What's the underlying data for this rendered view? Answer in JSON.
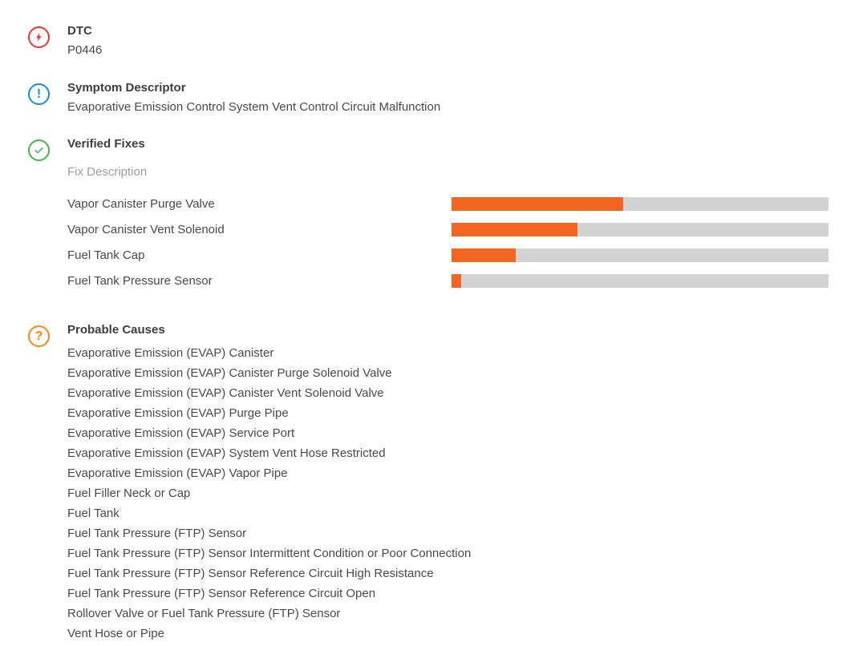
{
  "colors": {
    "bar_fill": "#f26522",
    "bar_track": "#d3d3d3",
    "dtc_icon": "#e53935",
    "symptom_icon": "#1e88e5",
    "fixes_icon": "#4caf50",
    "causes_icon": "#f5861f",
    "heading_text": "#3e3e3e",
    "body_text": "#4a4a4a",
    "muted_text": "#9e9e9e"
  },
  "dtc": {
    "heading": "DTC",
    "code": "P0446"
  },
  "symptom": {
    "heading": "Symptom Descriptor",
    "description": "Evaporative Emission Control System Vent Control Circuit Malfunction"
  },
  "verified_fixes": {
    "heading": "Verified Fixes",
    "column_header": "Fix Description",
    "fixes": [
      {
        "name": "Vapor Canister Purge Valve",
        "percent": 45.5
      },
      {
        "name": "Vapor Canister Vent Solenoid",
        "percent": 33.5
      },
      {
        "name": "Fuel Tank Cap",
        "percent": 17
      },
      {
        "name": "Fuel Tank Pressure Sensor",
        "percent": 2.5
      }
    ]
  },
  "probable_causes": {
    "heading": "Probable Causes",
    "items": [
      "Evaporative Emission (EVAP) Canister",
      "Evaporative Emission (EVAP) Canister Purge Solenoid Valve",
      "Evaporative Emission (EVAP) Canister Vent Solenoid Valve",
      "Evaporative Emission (EVAP) Purge Pipe",
      "Evaporative Emission (EVAP) Service Port",
      "Evaporative Emission (EVAP) System Vent Hose Restricted",
      "Evaporative Emission (EVAP) Vapor Pipe",
      "Fuel Filler Neck or Cap",
      "Fuel Tank",
      "Fuel Tank Pressure (FTP) Sensor",
      "Fuel Tank Pressure (FTP) Sensor Intermittent Condition or Poor Connection",
      "Fuel Tank Pressure (FTP) Sensor Reference Circuit High Resistance",
      "Fuel Tank Pressure (FTP) Sensor Reference Circuit Open",
      "Rollover Valve or Fuel Tank Pressure (FTP) Sensor",
      "Vent Hose or Pipe"
    ]
  },
  "chart_data": {
    "type": "bar",
    "orientation": "horizontal",
    "title": "Verified Fixes",
    "categories": [
      "Vapor Canister Purge Valve",
      "Vapor Canister Vent Solenoid",
      "Fuel Tank Cap",
      "Fuel Tank Pressure Sensor"
    ],
    "values": [
      45.5,
      33.5,
      17,
      2.5
    ],
    "xlim": [
      0,
      100
    ],
    "legend": "none",
    "grid": false
  }
}
